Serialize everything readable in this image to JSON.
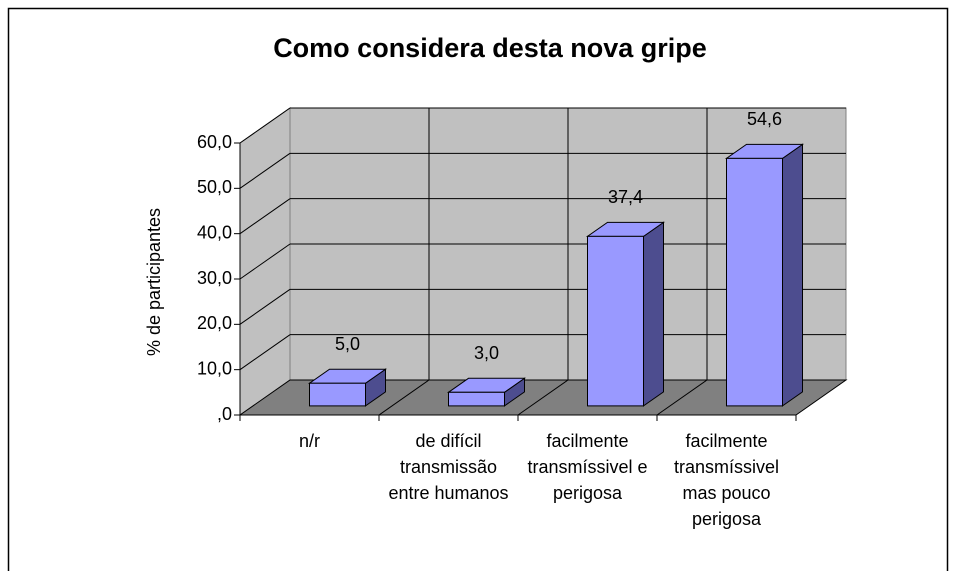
{
  "chart_data": {
    "type": "bar3d",
    "title": "Como considera desta nova gripe",
    "y_label": "% de participantes",
    "categories": [
      "n/r",
      "de difícil transmissão entre humanos",
      "facilmente transmíssivel e perigosa",
      "facilmente transmíssivel mas pouco perigosa"
    ],
    "values": [
      5.0,
      3.0,
      37.4,
      54.6
    ],
    "value_labels": [
      "5,0",
      "3,0",
      "37,4",
      "54,6"
    ],
    "color": "#9999ff",
    "ylim": [
      0,
      60
    ],
    "yticks": [
      {
        "value": 0,
        "label": ",0"
      },
      {
        "value": 10,
        "label": "10,0"
      },
      {
        "value": 20,
        "label": "20,0"
      },
      {
        "value": 30,
        "label": "30,0"
      },
      {
        "value": 40,
        "label": "40,0"
      },
      {
        "value": 50,
        "label": "50,0"
      },
      {
        "value": 60,
        "label": "60,0"
      }
    ],
    "grid": true
  }
}
